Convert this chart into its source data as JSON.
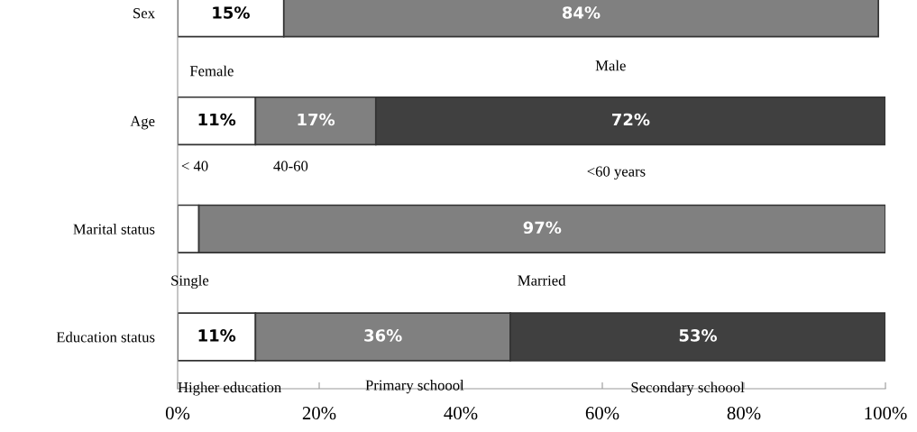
{
  "chart_data": {
    "type": "bar",
    "orientation": "horizontal",
    "stacked": true,
    "categories": [
      "Sex",
      "Age",
      "Marital status",
      "Education status"
    ],
    "series": [
      {
        "color": "#ffffff",
        "values": [
          15,
          11,
          3,
          11
        ],
        "value_labels": [
          "15%",
          "11%",
          null,
          "11%"
        ]
      },
      {
        "color": "#808080",
        "values": [
          84,
          17,
          97,
          36
        ],
        "value_labels": [
          "84%",
          "17%",
          "97%",
          "36%"
        ]
      },
      {
        "color": "#404040",
        "values": [
          null,
          72,
          null,
          53
        ],
        "value_labels": [
          null,
          "72%",
          null,
          "53%"
        ]
      }
    ],
    "xlim": [
      0,
      100
    ],
    "xticks": [
      {
        "value": 0,
        "label": "0%"
      },
      {
        "value": 20,
        "label": "20%"
      },
      {
        "value": 40,
        "label": "40%"
      },
      {
        "value": 60,
        "label": "60%"
      },
      {
        "value": 80,
        "label": "80%"
      },
      {
        "value": 100,
        "label": "100%"
      }
    ],
    "grid": false,
    "legend": false,
    "annotations": [
      "Female",
      "Male",
      "< 40",
      "40-60",
      "<60 years",
      "Single",
      "Married",
      "Higher education",
      "Primary schoool",
      "Secondary schoool"
    ]
  }
}
